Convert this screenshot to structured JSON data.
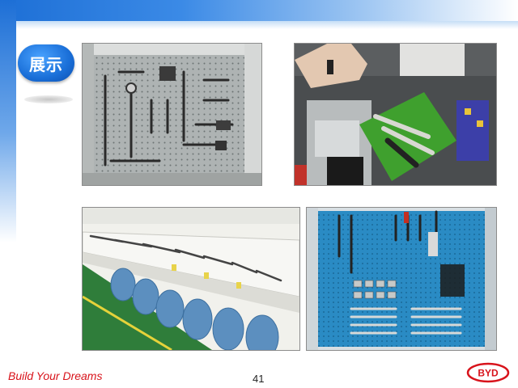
{
  "slide": {
    "title": "展示",
    "footer_tagline": "Build Your Dreams",
    "page_number": "41",
    "logo_text": "BYD"
  },
  "photos": [
    {
      "subject": "pegboard-tool-cabinet"
    },
    {
      "subject": "wrenches-on-green-tray"
    },
    {
      "subject": "labeled-tool-shelf"
    },
    {
      "subject": "blue-pegboard-wrench-rack"
    }
  ],
  "colors": {
    "accent_blue": "#1d6fd6",
    "brand_red": "#d8131b"
  }
}
